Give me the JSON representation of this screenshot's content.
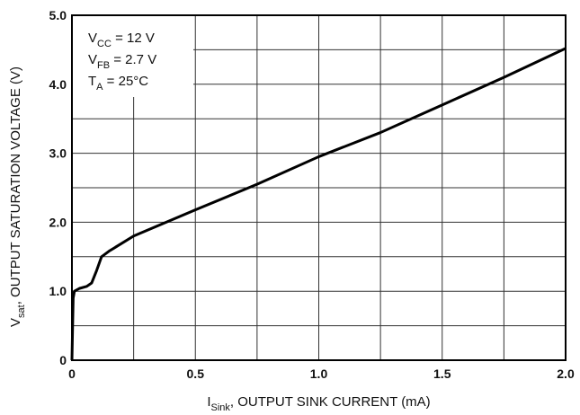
{
  "chart_data": {
    "type": "line",
    "x": [
      0,
      0.005,
      0.01,
      0.03,
      0.06,
      0.08,
      0.1,
      0.12,
      0.15,
      0.25,
      0.5,
      0.75,
      1.0,
      1.25,
      1.5,
      1.75,
      2.0
    ],
    "series": [
      {
        "color": "#000000",
        "values": [
          0,
          0.9,
          1.0,
          1.04,
          1.07,
          1.12,
          1.3,
          1.5,
          1.58,
          1.8,
          2.18,
          2.55,
          2.95,
          3.3,
          3.7,
          4.1,
          4.52
        ]
      }
    ],
    "xlim": [
      0,
      2
    ],
    "ylim": [
      0,
      5
    ],
    "xticks": [
      0,
      0.5,
      {
        "value": 1,
        "label": "1.0"
      },
      1.5,
      {
        "value": 2,
        "label": "2.0"
      }
    ],
    "yticks": [
      0,
      {
        "value": 1,
        "label": "1.0"
      },
      {
        "value": 2,
        "label": "2.0"
      },
      {
        "value": 3,
        "label": "3.0"
      },
      {
        "value": 4,
        "label": "4.0"
      },
      {
        "value": 5,
        "label": "5.0"
      }
    ],
    "xgrid_minor": [
      0.25,
      0.75,
      1.25,
      1.75
    ],
    "ygrid_minor": [
      0.5,
      1.5,
      2.5,
      3.5,
      4.5
    ],
    "grid": true,
    "xlabel": {
      "main": "I",
      "sub": "Sink",
      "rest": ", OUTPUT SINK CURRENT (mA)"
    },
    "ylabel": {
      "main": "V",
      "sub": "sat",
      "rest": ", OUTPUT SATURATION VOLTAGE (V)"
    },
    "annotations": [
      {
        "main": "V",
        "sub": "CC",
        "rest": " = 12 V"
      },
      {
        "main": "V",
        "sub": "FB",
        "rest": " = 2.7 V"
      },
      {
        "main": "T",
        "sub": "A",
        "rest": " = 25°C"
      }
    ]
  }
}
